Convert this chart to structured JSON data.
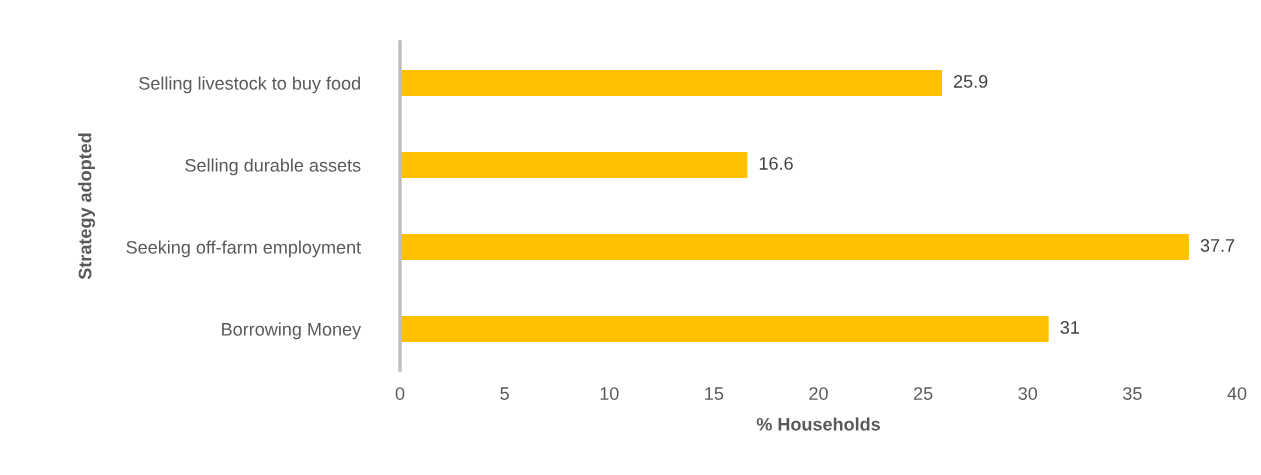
{
  "chart_data": {
    "type": "bar",
    "orientation": "horizontal",
    "xlabel": "% Households",
    "ylabel": "Strategy adopted",
    "categories": [
      "Selling livestock to buy food",
      "Selling durable assets",
      "Seeking off-farm employment",
      "Borrowing Money"
    ],
    "values": [
      25.9,
      16.6,
      37.7,
      31
    ],
    "color": "#ffc000",
    "xlim": [
      0,
      40
    ],
    "xticks": [
      0,
      5,
      10,
      15,
      20,
      25,
      30,
      35,
      40
    ],
    "grid": false,
    "data_labels": true
  }
}
